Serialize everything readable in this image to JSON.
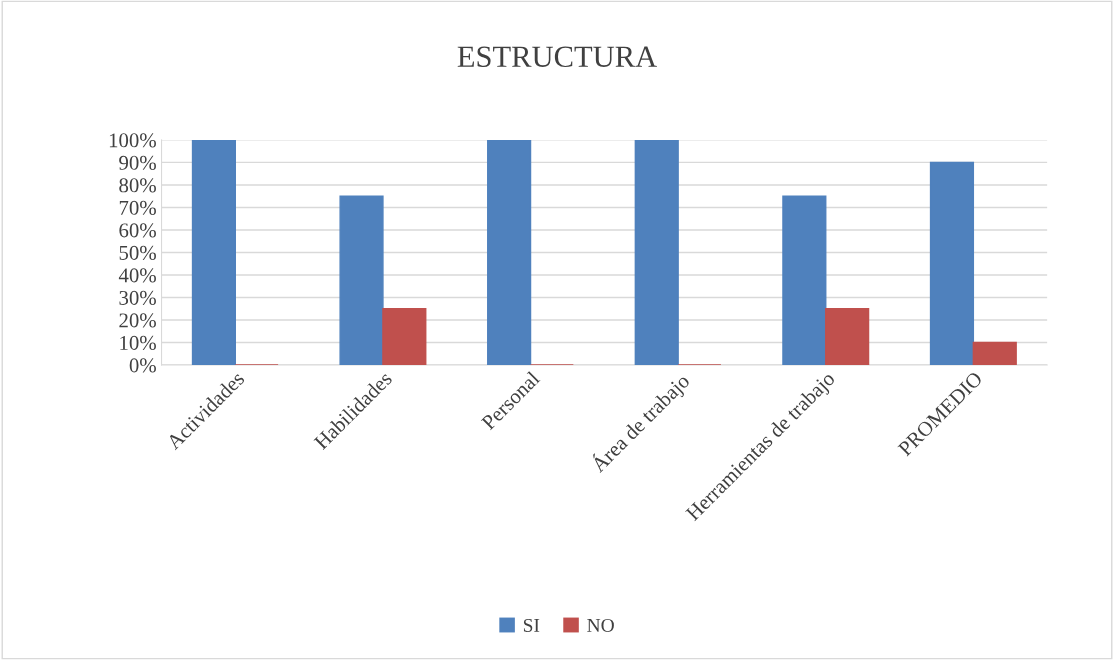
{
  "chart_data": {
    "type": "bar",
    "title": "ESTRUCTURA",
    "categories": [
      "Actividades",
      "Habilidades",
      "Personal",
      "Área de trabajo",
      "Herramientas de trabajo",
      "PROMEDIO"
    ],
    "series": [
      {
        "name": "SI",
        "color": "#4f81bd",
        "values": [
          100,
          75,
          100,
          100,
          75,
          90
        ]
      },
      {
        "name": "NO",
        "color": "#c0504d",
        "values": [
          0,
          25,
          0,
          0,
          25,
          10
        ]
      }
    ],
    "ylim": [
      0,
      100
    ],
    "yticks": [
      {
        "value": 0,
        "label": "0%"
      },
      {
        "value": 10,
        "label": "10%"
      },
      {
        "value": 20,
        "label": "20%"
      },
      {
        "value": 30,
        "label": "30%"
      },
      {
        "value": 40,
        "label": "40%"
      },
      {
        "value": 50,
        "label": "50%"
      },
      {
        "value": 60,
        "label": "60%"
      },
      {
        "value": 70,
        "label": "70%"
      },
      {
        "value": 80,
        "label": "80%"
      },
      {
        "value": 90,
        "label": "90%"
      },
      {
        "value": 100,
        "label": "100%"
      }
    ],
    "grid": "y",
    "legend": "bottom"
  }
}
